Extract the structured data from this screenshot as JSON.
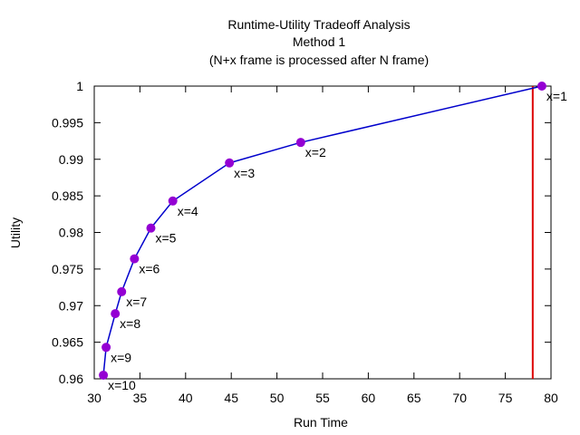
{
  "chart_data": {
    "type": "line",
    "title": [
      "Runtime-Utility Tradeoff Analysis",
      "Method 1",
      "(N+x frame is processed after N frame)"
    ],
    "xlabel": "Run Time",
    "ylabel": "Utility",
    "xlim": [
      30,
      80
    ],
    "ylim": [
      0.96,
      1.0
    ],
    "xticks": [
      30,
      35,
      40,
      45,
      50,
      55,
      60,
      65,
      70,
      75,
      80
    ],
    "yticks": [
      0.96,
      0.965,
      0.97,
      0.975,
      0.98,
      0.985,
      0.99,
      0.995,
      1
    ],
    "ytick_labels": [
      "0.96",
      "0.965",
      "0.97",
      "0.975",
      "0.98",
      "0.985",
      "0.99",
      "0.995",
      "1"
    ],
    "grid": false,
    "series": [
      {
        "color": "#0000cc",
        "marker_color": "#9400d3",
        "points": [
          {
            "x": 79.0,
            "y": 1.0,
            "label": "x=1"
          },
          {
            "x": 52.6,
            "y": 0.9923,
            "label": "x=2"
          },
          {
            "x": 44.8,
            "y": 0.9895,
            "label": "x=3"
          },
          {
            "x": 38.6,
            "y": 0.9843,
            "label": "x=4"
          },
          {
            "x": 36.2,
            "y": 0.9806,
            "label": "x=5"
          },
          {
            "x": 34.4,
            "y": 0.9764,
            "label": "x=6"
          },
          {
            "x": 33.0,
            "y": 0.9719,
            "label": "x=7"
          },
          {
            "x": 32.3,
            "y": 0.9689,
            "label": "x=8"
          },
          {
            "x": 31.3,
            "y": 0.9643,
            "label": "x=9"
          },
          {
            "x": 31.0,
            "y": 0.9605,
            "label": "x=10"
          }
        ]
      }
    ],
    "vertical_line": {
      "x": 78.0,
      "color": "#dd0000"
    }
  }
}
